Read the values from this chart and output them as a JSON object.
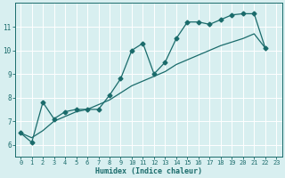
{
  "xlabel": "Humidex (Indice chaleur)",
  "bg_color": "#d8eff0",
  "line_color": "#1a6b6b",
  "grid_color": "#ffffff",
  "xlim": [
    -0.5,
    23.5
  ],
  "ylim": [
    5.5,
    12.0
  ],
  "yticks": [
    6,
    7,
    8,
    9,
    10,
    11
  ],
  "xticks": [
    0,
    1,
    2,
    3,
    4,
    5,
    6,
    7,
    8,
    9,
    10,
    11,
    12,
    13,
    14,
    15,
    16,
    17,
    18,
    19,
    20,
    21,
    22,
    23
  ],
  "line1_x": [
    0,
    1,
    2,
    3,
    4,
    5,
    6,
    7,
    8,
    9,
    10,
    11,
    12,
    13,
    14,
    15,
    16,
    17,
    18,
    19,
    20,
    21,
    22
  ],
  "line1_y": [
    6.5,
    6.1,
    7.8,
    7.1,
    7.4,
    7.5,
    7.5,
    7.5,
    8.1,
    8.8,
    10.0,
    10.3,
    9.0,
    9.5,
    10.5,
    11.2,
    11.2,
    11.1,
    11.3,
    11.5,
    11.55,
    11.55,
    10.1
  ],
  "line2_x": [
    0,
    1,
    2,
    3,
    4,
    5,
    6,
    7,
    8,
    9,
    10,
    11,
    12,
    13,
    14,
    15,
    16,
    17,
    18,
    19,
    20,
    21,
    22
  ],
  "line2_y": [
    6.5,
    6.3,
    6.6,
    7.0,
    7.2,
    7.4,
    7.5,
    7.7,
    7.9,
    8.2,
    8.5,
    8.7,
    8.9,
    9.1,
    9.4,
    9.6,
    9.8,
    10.0,
    10.2,
    10.35,
    10.5,
    10.7,
    10.1
  ],
  "marker": "D",
  "markersize": 2.5,
  "linewidth": 0.9,
  "tick_fontsize": 5.0,
  "xlabel_fontsize": 6.0
}
